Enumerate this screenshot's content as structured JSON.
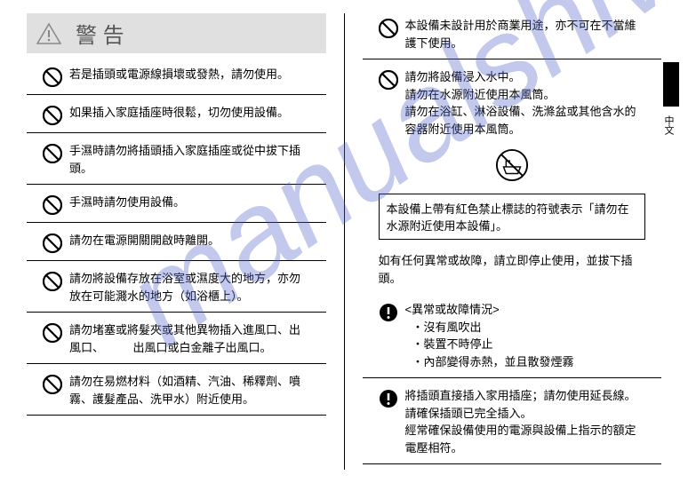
{
  "header": {
    "title": "警 告"
  },
  "sideLabel": "中文",
  "watermark": "manualshive.com",
  "leftItems": [
    {
      "text": "若是插頭或電源線損壞或發熱，請勿使用。"
    },
    {
      "text": "如果插入家庭插座時很鬆，切勿使用設備。"
    },
    {
      "text": "手濕時請勿將插頭插入家庭插座或從中拔下插頭。"
    },
    {
      "text": "手濕時請勿使用設備。"
    },
    {
      "text": "請勿在電源開關開啟時離開。"
    },
    {
      "text": "請勿將設備存放在浴室或濕度大的地方，亦勿放在可能濺水的地方（如浴櫃上）。"
    },
    {
      "text": "請勿堵塞或將髮夾或其他異物插入進風口、出風口、　　　出風口或白金離子出風口。"
    },
    {
      "text": "請勿在易燃材料（如酒精、汽油、稀釋劑、噴霧、護髮產品、洗甲水）附近使用。"
    }
  ],
  "right": {
    "items": [
      {
        "text": "本設備未設計用於商業用途，亦不可在不當維護下使用。"
      },
      {
        "text": "請勿將設備浸入水中。\n請勿在水源附近使用本風筒。\n請勿在浴缸、淋浴設備、洗滌盆或其他含水的容器附近使用本風筒。"
      }
    ],
    "boxed": "本設備上帶有紅色禁止標誌的符號表示「請勿在水源附近使用本設備」。",
    "plain": "如有任何異常或故障，請立即停止使用，並拔下插頭。",
    "exc1": {
      "head": "<異常或故障情況>",
      "sub": [
        "沒有風吹出",
        "裝置不時停止",
        "內部變得赤熱，並且散發煙霧"
      ]
    },
    "exc2": {
      "lines": [
        "將插頭直接插入家用插座；請勿使用延長線。",
        "請確保插頭已完全插入。",
        "經常確保設備使用的電源與設備上指示的額定電壓相符。"
      ]
    }
  },
  "colors": {
    "headerBg": "#e0e0e0",
    "text": "#000000",
    "watermark": "rgba(80,100,200,0.35)"
  }
}
